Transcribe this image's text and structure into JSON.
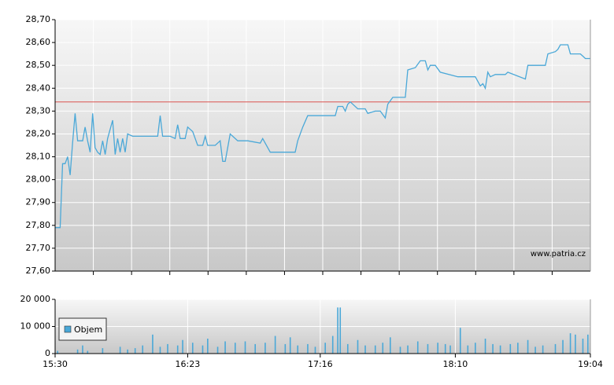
{
  "chart_data": [
    {
      "type": "line",
      "color": "#4aa8d8",
      "x": [
        "15:30",
        "15:32",
        "15:33",
        "15:34",
        "15:35",
        "15:36",
        "15:37",
        "15:38",
        "15:39",
        "15:41",
        "15:42",
        "15:43",
        "15:44",
        "15:45",
        "15:46",
        "15:47",
        "15:48",
        "15:49",
        "15:50",
        "15:51",
        "15:53",
        "15:54",
        "15:55",
        "15:56",
        "15:57",
        "15:58",
        "15:59",
        "16:01",
        "16:06",
        "16:11",
        "16:12",
        "16:13",
        "16:16",
        "16:18",
        "16:19",
        "16:20",
        "16:22",
        "16:23",
        "16:25",
        "16:27",
        "16:29",
        "16:30",
        "16:31",
        "16:34",
        "16:36",
        "16:37",
        "16:38",
        "16:40",
        "16:41",
        "16:43",
        "16:47",
        "16:52",
        "16:53",
        "16:56",
        "17:06",
        "17:07",
        "17:09",
        "17:11",
        "17:22",
        "17:23",
        "17:25",
        "17:26",
        "17:27",
        "17:28",
        "17:31",
        "17:34",
        "17:35",
        "17:38",
        "17:40",
        "17:42",
        "17:43",
        "17:45",
        "17:50",
        "17:51",
        "17:54",
        "17:56",
        "17:58",
        "17:59",
        "18:00",
        "18:02",
        "18:04",
        "18:11",
        "18:18",
        "18:20",
        "18:21",
        "18:22",
        "18:23",
        "18:24",
        "18:26",
        "18:30",
        "18:31",
        "18:38",
        "18:39",
        "18:46",
        "18:47",
        "18:50",
        "18:51",
        "18:52",
        "18:55",
        "18:56",
        "19:00",
        "19:01",
        "19:02",
        "19:04"
      ],
      "values": [
        27.79,
        27.79,
        28.07,
        28.07,
        28.1,
        28.02,
        28.16,
        28.29,
        28.17,
        28.17,
        28.23,
        28.17,
        28.12,
        28.29,
        28.14,
        28.12,
        28.11,
        28.17,
        28.11,
        28.18,
        28.26,
        28.11,
        28.18,
        28.12,
        28.18,
        28.12,
        28.2,
        28.19,
        28.19,
        28.19,
        28.28,
        28.19,
        28.19,
        28.18,
        28.24,
        28.18,
        28.18,
        28.23,
        28.21,
        28.15,
        28.15,
        28.19,
        28.15,
        28.15,
        28.17,
        28.08,
        28.08,
        28.2,
        28.19,
        28.17,
        28.17,
        28.16,
        28.18,
        28.12,
        28.12,
        28.17,
        28.23,
        28.28,
        28.28,
        28.32,
        28.32,
        28.3,
        28.33,
        28.34,
        28.31,
        28.31,
        28.29,
        28.3,
        28.3,
        28.27,
        28.33,
        28.36,
        28.36,
        28.48,
        28.49,
        28.52,
        28.52,
        28.48,
        28.5,
        28.5,
        28.47,
        28.45,
        28.45,
        28.41,
        28.42,
        28.4,
        28.47,
        28.45,
        28.46,
        28.46,
        28.47,
        28.44,
        28.5,
        28.5,
        28.55,
        28.56,
        28.57,
        28.59,
        28.59,
        28.55,
        28.55,
        28.54,
        28.53,
        28.53
      ],
      "reference_line": 28.34,
      "reference_color": "#d9534f",
      "xlim": [
        "15:30",
        "19:04"
      ],
      "ylim": [
        27.6,
        28.7
      ],
      "yticks": [
        {
          "value": 27.6,
          "label": "27,60"
        },
        {
          "value": 27.7,
          "label": "27,70"
        },
        {
          "value": 27.8,
          "label": "27,80"
        },
        {
          "value": 27.9,
          "label": "27,90"
        },
        {
          "value": 28.0,
          "label": "28,00"
        },
        {
          "value": 28.1,
          "label": "28,10"
        },
        {
          "value": 28.2,
          "label": "28,20"
        },
        {
          "value": 28.3,
          "label": "28,30"
        },
        {
          "value": 28.4,
          "label": "28,40"
        },
        {
          "value": 28.5,
          "label": "28,50"
        },
        {
          "value": 28.6,
          "label": "28,60"
        },
        {
          "value": 28.7,
          "label": "28,70"
        }
      ],
      "watermark": "www.patria.cz",
      "grid": true
    },
    {
      "type": "bar",
      "x": [
        "15:31",
        "15:39",
        "15:41",
        "15:43",
        "15:49",
        "15:56",
        "15:59",
        "16:02",
        "16:05",
        "16:09",
        "16:12",
        "16:15",
        "16:19",
        "16:21",
        "16:25",
        "16:29",
        "16:31",
        "16:35",
        "16:38",
        "16:42",
        "16:46",
        "16:50",
        "16:54",
        "16:58",
        "17:02",
        "17:04",
        "17:07",
        "17:11",
        "17:14",
        "17:18",
        "17:21",
        "17:23",
        "17:24",
        "17:27",
        "17:31",
        "17:34",
        "17:38",
        "17:41",
        "17:44",
        "17:48",
        "17:51",
        "17:55",
        "17:59",
        "18:03",
        "18:06",
        "18:08",
        "18:12",
        "18:15",
        "18:18",
        "18:22",
        "18:25",
        "18:28",
        "18:32",
        "18:35",
        "18:39",
        "18:42",
        "18:45",
        "18:50",
        "18:53",
        "18:56",
        "18:58",
        "19:01",
        "19:03"
      ],
      "series": [
        {
          "name": "Objem",
          "color": "#4aa8d8",
          "values": [
            1000,
            1500,
            3000,
            1000,
            2000,
            2500,
            1500,
            2000,
            3000,
            7000,
            2500,
            3500,
            3000,
            5000,
            4000,
            3000,
            5500,
            2500,
            4500,
            4000,
            4500,
            3500,
            4000,
            6500,
            3500,
            6000,
            3000,
            3500,
            2500,
            4000,
            6500,
            17000,
            17000,
            3500,
            5000,
            3000,
            3000,
            4000,
            6000,
            2500,
            3000,
            4500,
            3500,
            4000,
            3500,
            3000,
            9500,
            3000,
            4000,
            5500,
            3500,
            3000,
            3500,
            4000,
            5000,
            2500,
            3000,
            3500,
            5000,
            7500,
            7000,
            5500,
            7000
          ]
        }
      ],
      "xlim": [
        "15:30",
        "19:04"
      ],
      "xticks": [
        "15:30",
        "16:23",
        "17:16",
        "18:10",
        "19:04"
      ],
      "ylim": [
        0,
        20000
      ],
      "yticks": [
        0,
        {
          "value": 10000,
          "label": "10 000"
        },
        {
          "value": 20000,
          "label": "20 000"
        }
      ],
      "grid": true
    }
  ]
}
